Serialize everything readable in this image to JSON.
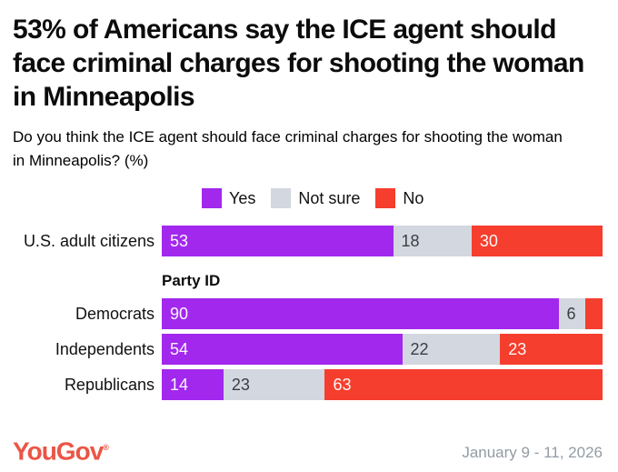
{
  "title": "53% of Americans say the ICE agent should face criminal charges for shooting the woman in Minneapolis",
  "subtitle": "Do you think the ICE agent should face criminal charges for shooting the woman in Minneapolis? (%)",
  "legend": [
    {
      "label": "Yes",
      "color": "#A228ED"
    },
    {
      "label": "Not sure",
      "color": "#D3D7DF"
    },
    {
      "label": "No",
      "color": "#F53E2D"
    }
  ],
  "colors": {
    "yes": "#A228ED",
    "not_sure": "#D3D7DF",
    "no": "#F53E2D",
    "logo": "#EB5545",
    "date_text": "#939BA3",
    "title_text": "#0C0C0C"
  },
  "footer": {
    "logo_text": "YouGov",
    "logo_mark": "®",
    "date_range": "January 9 - 11, 2026"
  },
  "chart_data": {
    "type": "bar",
    "orientation": "horizontal",
    "stacked": true,
    "series_names": [
      "Yes",
      "Not sure",
      "No"
    ],
    "value_unit": "percent",
    "legend_position": "top",
    "grid": false,
    "groups": [
      {
        "header": "",
        "rows": [
          {
            "category": "U.S. adult citizens",
            "values": [
              53,
              18,
              30
            ],
            "labels": [
              "53",
              "18",
              "30"
            ]
          }
        ]
      },
      {
        "header": "Party ID",
        "rows": [
          {
            "category": "Democrats",
            "values": [
              90,
              6,
              4
            ],
            "labels": [
              "90",
              "6",
              ""
            ]
          },
          {
            "category": "Independents",
            "values": [
              54,
              22,
              23
            ],
            "labels": [
              "54",
              "22",
              "23"
            ]
          },
          {
            "category": "Republicans",
            "values": [
              14,
              23,
              63
            ],
            "labels": [
              "14",
              "23",
              "63"
            ]
          }
        ]
      }
    ]
  }
}
